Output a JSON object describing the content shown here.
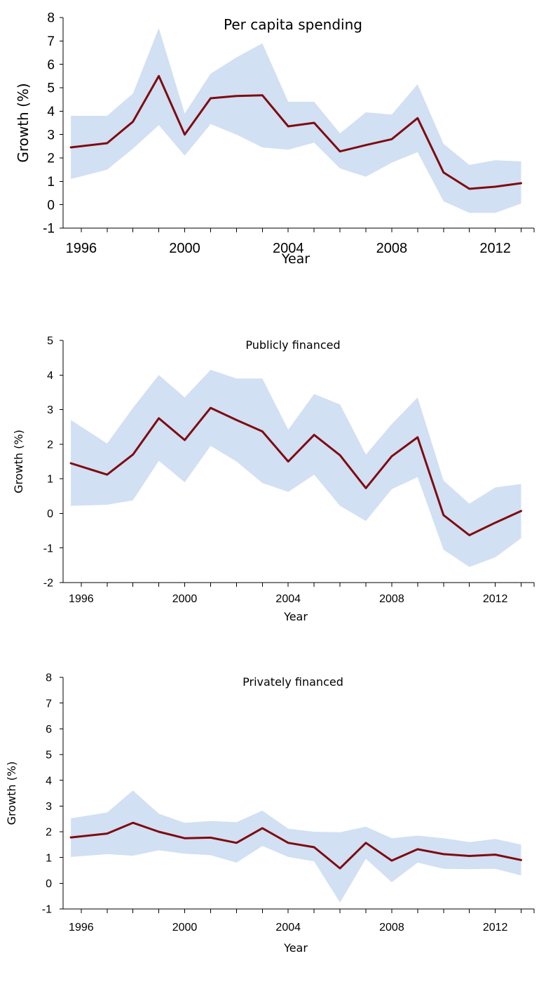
{
  "chart_data": [
    {
      "type": "area",
      "title": "Per capita spending",
      "xlabel": "Year",
      "ylabel": "Growth (%)",
      "ylim": [
        -1,
        8
      ],
      "xlim": [
        1995.3,
        2013.5
      ],
      "yticks": [
        "-1",
        "0",
        "1",
        "2",
        "3",
        "4",
        "5",
        "6",
        "7",
        "8"
      ],
      "xticks": [
        "1996",
        "2000",
        "2004",
        "2008",
        "2012"
      ],
      "grid": false,
      "legend": "none",
      "x": [
        1995.6,
        1997,
        1998,
        1999,
        2000,
        2001,
        2002,
        2003,
        2004,
        2005,
        2006,
        2007,
        2008,
        2009,
        2010,
        2011,
        2012,
        2013
      ],
      "series": [
        {
          "role": "mean",
          "color": "#7f0b10",
          "values": [
            2.45,
            2.63,
            3.55,
            5.5,
            3.0,
            4.55,
            4.65,
            4.68,
            3.35,
            3.5,
            2.28,
            2.55,
            2.8,
            3.7,
            1.38,
            0.68,
            0.77,
            0.92
          ]
        },
        {
          "role": "band-upper",
          "color": "#c9daf1",
          "values": [
            3.8,
            3.8,
            4.75,
            7.55,
            3.9,
            5.6,
            6.3,
            6.9,
            4.4,
            4.4,
            3.05,
            3.95,
            3.85,
            5.15,
            2.6,
            1.7,
            1.9,
            1.85
          ]
        },
        {
          "role": "band-lower",
          "color": "#c9daf1",
          "values": [
            1.1,
            1.5,
            2.4,
            3.4,
            2.1,
            3.45,
            3.0,
            2.45,
            2.35,
            2.65,
            1.55,
            1.2,
            1.8,
            2.25,
            0.15,
            -0.35,
            -0.35,
            0.05
          ]
        }
      ]
    },
    {
      "type": "area",
      "title": "Publicly financed",
      "xlabel": "Year",
      "ylabel": "Growth (%)",
      "ylim": [
        -2,
        5
      ],
      "xlim": [
        1995.3,
        2013.5
      ],
      "yticks": [
        "-2",
        "-1",
        "0",
        "1",
        "2",
        "3",
        "4",
        "5"
      ],
      "xticks": [
        "1996",
        "2000",
        "2004",
        "2008",
        "2012"
      ],
      "grid": false,
      "legend": "none",
      "x": [
        1995.6,
        1997,
        1998,
        1999,
        2000,
        2001,
        2002,
        2003,
        2004,
        2005,
        2006,
        2007,
        2008,
        2009,
        2010,
        2011,
        2012,
        2013
      ],
      "series": [
        {
          "role": "mean",
          "color": "#7f0b10",
          "values": [
            1.45,
            1.12,
            1.7,
            2.75,
            2.12,
            3.05,
            2.7,
            2.37,
            1.5,
            2.27,
            1.68,
            0.73,
            1.65,
            2.2,
            -0.05,
            -0.63,
            -0.27,
            0.07
          ]
        },
        {
          "role": "band-upper",
          "color": "#c9daf1",
          "values": [
            2.7,
            2.02,
            3.05,
            4.0,
            3.35,
            4.15,
            3.9,
            3.9,
            2.42,
            3.45,
            3.15,
            1.7,
            2.58,
            3.35,
            0.95,
            0.28,
            0.75,
            0.85
          ]
        },
        {
          "role": "band-lower",
          "color": "#c9daf1",
          "values": [
            0.22,
            0.25,
            0.38,
            1.52,
            0.9,
            1.95,
            1.5,
            0.88,
            0.62,
            1.12,
            0.22,
            -0.22,
            0.7,
            1.05,
            -1.05,
            -1.55,
            -1.27,
            -0.72
          ]
        }
      ]
    },
    {
      "type": "area",
      "title": "Privately financed",
      "xlabel": "Year",
      "ylabel": "Growth (%)",
      "ylim": [
        -1,
        8
      ],
      "xlim": [
        1995.3,
        2013.5
      ],
      "yticks": [
        "-1",
        "0",
        "1",
        "2",
        "3",
        "4",
        "5",
        "6",
        "7",
        "8"
      ],
      "xticks": [
        "1996",
        "2000",
        "2004",
        "2008",
        "2012"
      ],
      "grid": false,
      "legend": "none",
      "x": [
        1995.6,
        1997,
        1998,
        1999,
        2000,
        2001,
        2002,
        2003,
        2004,
        2005,
        2006,
        2007,
        2008,
        2009,
        2010,
        2011,
        2012,
        2013
      ],
      "series": [
        {
          "role": "mean",
          "color": "#7f0b10",
          "values": [
            1.78,
            1.93,
            2.35,
            2.0,
            1.75,
            1.77,
            1.57,
            2.14,
            1.57,
            1.4,
            0.58,
            1.57,
            0.88,
            1.32,
            1.13,
            1.06,
            1.11,
            0.9
          ]
        },
        {
          "role": "band-upper",
          "color": "#c9daf1",
          "values": [
            2.52,
            2.75,
            3.6,
            2.7,
            2.35,
            2.42,
            2.37,
            2.82,
            2.12,
            2.0,
            1.98,
            2.2,
            1.75,
            1.85,
            1.75,
            1.6,
            1.72,
            1.5
          ]
        },
        {
          "role": "band-lower",
          "color": "#c9daf1",
          "values": [
            1.02,
            1.13,
            1.07,
            1.28,
            1.15,
            1.09,
            0.8,
            1.45,
            1.02,
            0.85,
            -0.75,
            0.95,
            0.04,
            0.8,
            0.56,
            0.55,
            0.56,
            0.3
          ]
        }
      ]
    }
  ]
}
